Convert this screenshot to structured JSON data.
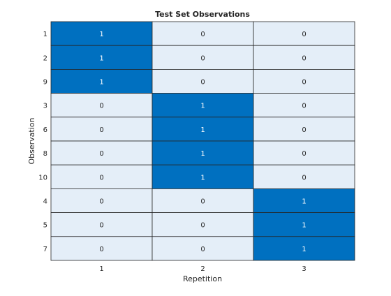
{
  "chart_data": {
    "type": "heatmap",
    "title": "Test Set Observations",
    "xlabel": "Repetition",
    "ylabel": "Observation",
    "x_categories": [
      "1",
      "2",
      "3"
    ],
    "y_categories": [
      "1",
      "2",
      "9",
      "3",
      "6",
      "8",
      "10",
      "4",
      "5",
      "7"
    ],
    "values": [
      [
        1,
        0,
        0
      ],
      [
        1,
        0,
        0
      ],
      [
        1,
        0,
        0
      ],
      [
        0,
        1,
        0
      ],
      [
        0,
        1,
        0
      ],
      [
        0,
        1,
        0
      ],
      [
        0,
        1,
        0
      ],
      [
        0,
        0,
        1
      ],
      [
        0,
        0,
        1
      ],
      [
        0,
        0,
        1
      ]
    ],
    "color_low": "#e4eef8",
    "color_high": "#0070c0",
    "text_color_low": "#262626",
    "text_color_high": "#ffffff",
    "grid_color": "#262626"
  }
}
